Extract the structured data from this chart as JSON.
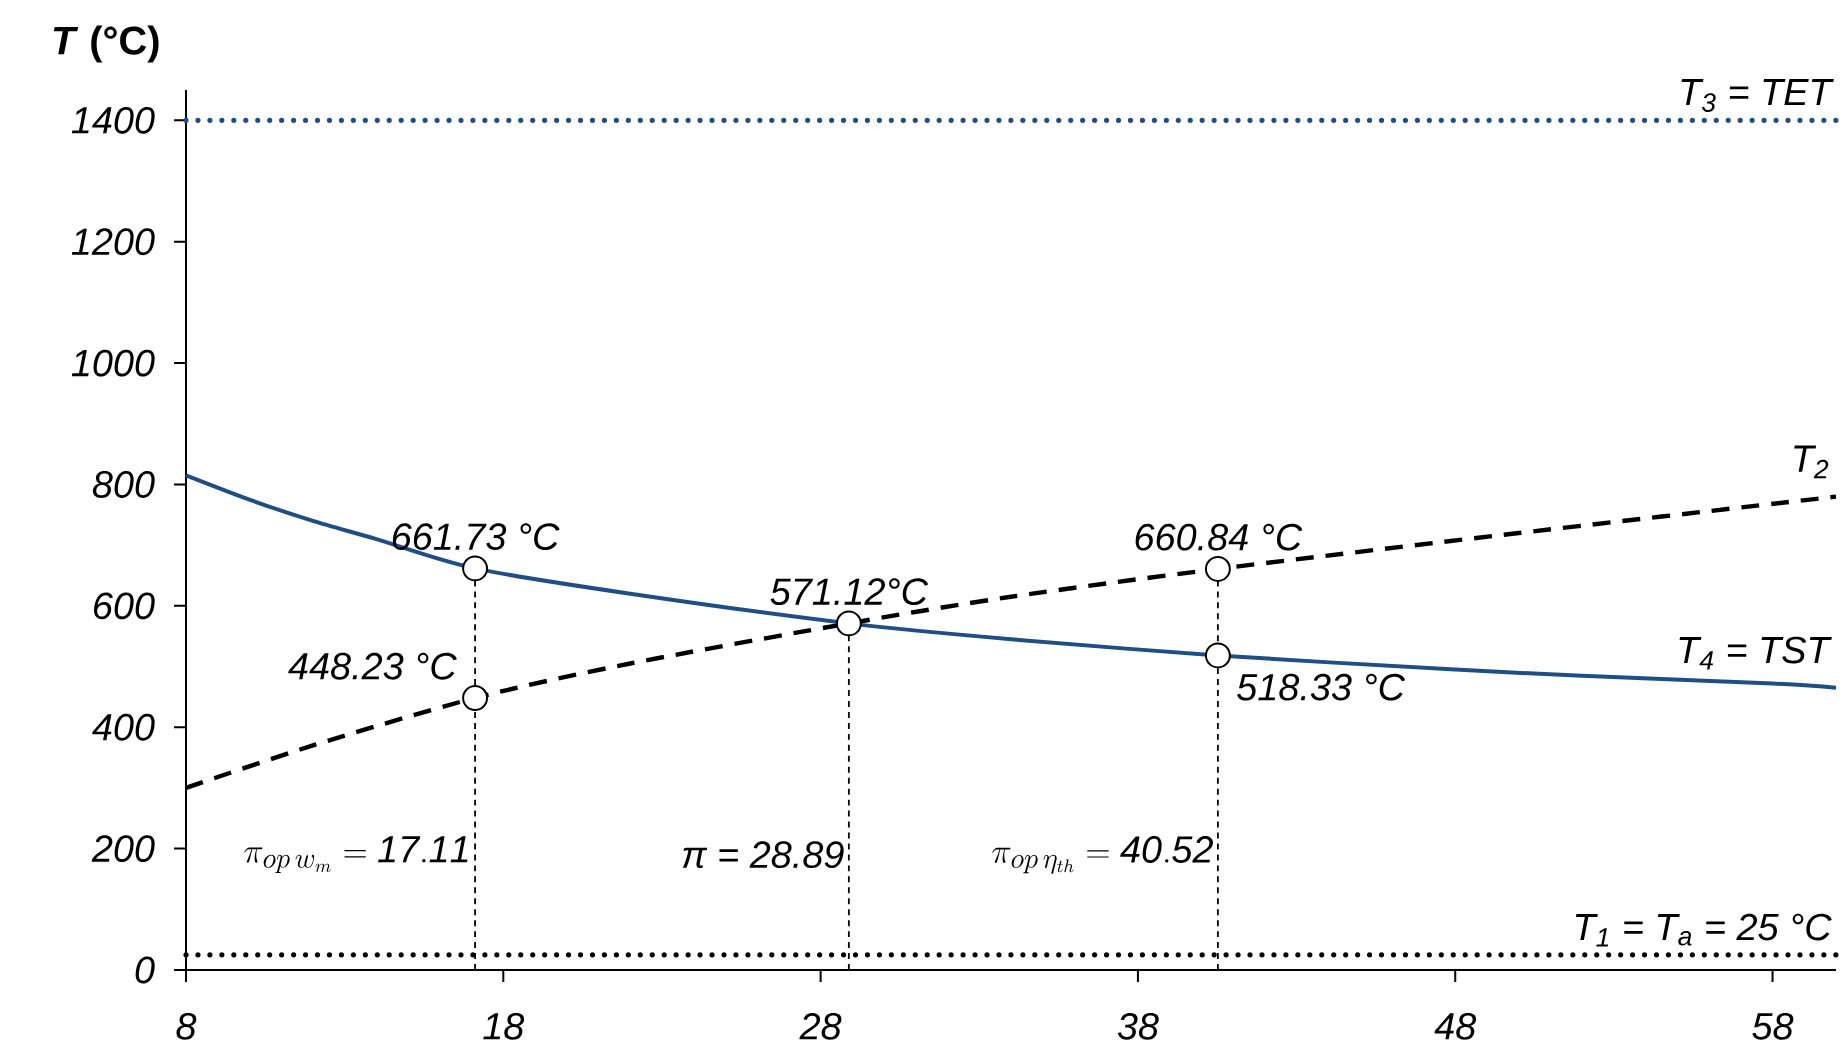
{
  "chart_data": {
    "type": "line",
    "ylabel": "*T* (°C)",
    "xlim": [
      8,
      60
    ],
    "xticks": [
      8,
      18,
      28,
      38,
      48,
      58
    ],
    "ylim": [
      0,
      1450
    ],
    "yticks": [
      0,
      200,
      400,
      600,
      800,
      1000,
      1200,
      1400
    ],
    "series": [
      {
        "name": "T$_{4}$ = TST",
        "color": "#1f4e87",
        "line_style": "solid",
        "marker": "none",
        "x": [
          8,
          10,
          12,
          14,
          17.11,
          22,
          28.89,
          34,
          40.52,
          48,
          52,
          58,
          60
        ],
        "values": [
          815,
          775,
          740,
          710,
          661.73,
          620,
          571.12,
          545,
          518.33,
          495,
          485,
          472,
          465
        ]
      },
      {
        "name": "T$_{2}$",
        "color": "#000000",
        "line_style": "dashed",
        "marker": "none",
        "x": [
          8,
          12,
          17.11,
          22,
          28.89,
          34,
          40.52,
          50,
          60
        ],
        "values": [
          300,
          370,
          448.23,
          505,
          571.12,
          615,
          660.84,
          720,
          780
        ]
      },
      {
        "type": "scatter",
        "color": "#000000",
        "marker": "circle",
        "x": [
          17.11,
          17.11,
          28.89,
          40.52,
          40.52
        ],
        "values": [
          661.73,
          448.23,
          571.12,
          660.84,
          518.33
        ],
        "value_labels": [
          "661.73 °C",
          "448.23 °C",
          "571.12°C",
          "660.84 °C",
          "518.33 °C"
        ]
      }
    ],
    "ref_lines": [
      {
        "axis": "y",
        "value": 1400,
        "label": "T$_{3}$ = TET",
        "color": "#1f4e87",
        "line_style": "dotted"
      },
      {
        "axis": "y",
        "value": 25,
        "label": "T$_{1}$ = T$_{a}$ = 25 °C",
        "color": "#000000",
        "line_style": "dotted"
      },
      {
        "axis": "x",
        "value": 17.11,
        "label": "\\pi_{op\\,w_m} = \\mathit{17.11}",
        "color": "#000000",
        "line_style": "dashed"
      },
      {
        "axis": "x",
        "value": 28.89,
        "label": "π =  28.89",
        "color": "#000000",
        "line_style": "dashed"
      },
      {
        "axis": "x",
        "value": 40.52,
        "label": "\\pi_{op\\,\\eta_{th}} = \\mathit{40.52}",
        "color": "#000000",
        "line_style": "dashed"
      }
    ]
  }
}
